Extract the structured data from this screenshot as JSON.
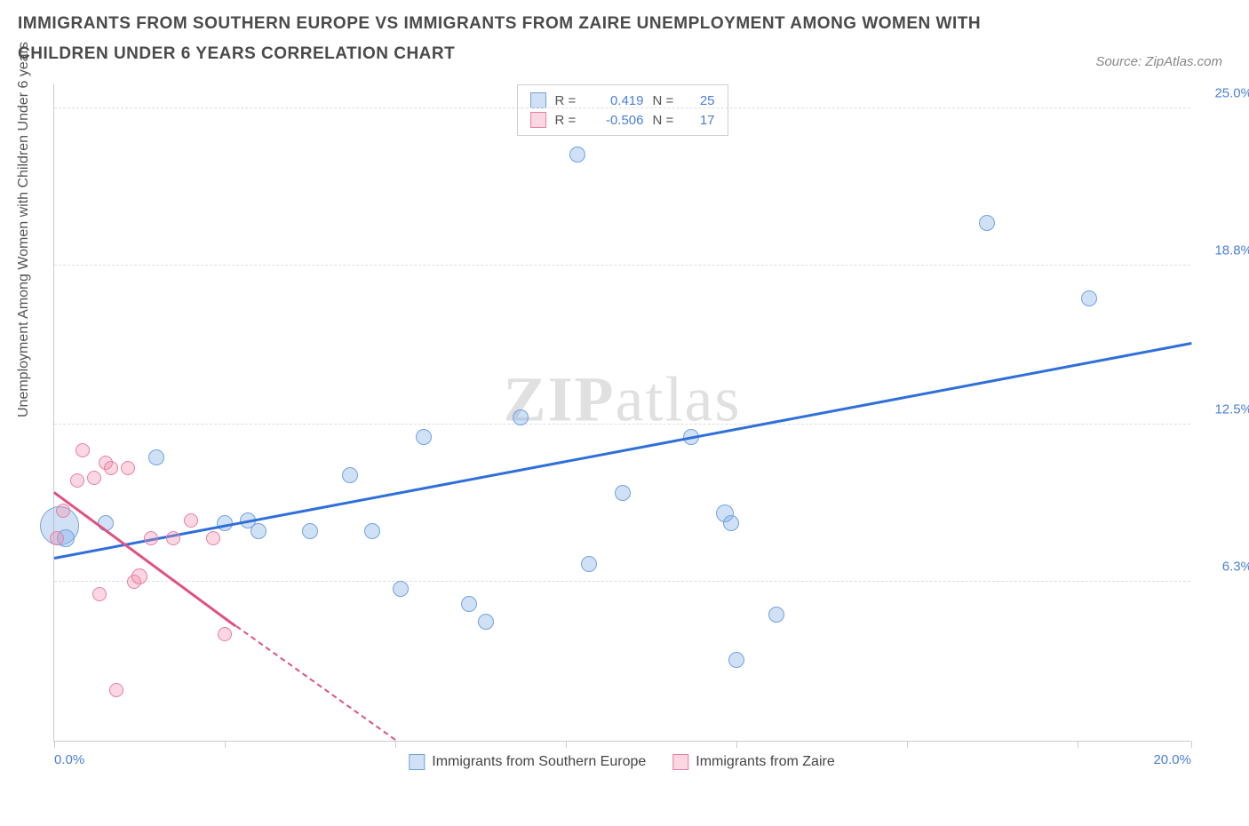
{
  "title": "IMMIGRANTS FROM SOUTHERN EUROPE VS IMMIGRANTS FROM ZAIRE UNEMPLOYMENT AMONG WOMEN WITH CHILDREN UNDER 6 YEARS CORRELATION CHART",
  "source": "Source: ZipAtlas.com",
  "y_axis_label": "Unemployment Among Women with Children Under 6 years",
  "watermark_bold": "ZIP",
  "watermark_light": "atlas",
  "chart": {
    "type": "scatter",
    "xlim": [
      0,
      20
    ],
    "ylim": [
      0,
      26
    ],
    "x_ticks": [
      0,
      3,
      6,
      9,
      12,
      15,
      18,
      20
    ],
    "x_tick_labels": {
      "0": "0.0%",
      "20": "20.0%"
    },
    "y_ticks": [
      6.3,
      12.5,
      18.8,
      25.0
    ],
    "y_tick_labels": [
      "6.3%",
      "12.5%",
      "18.8%",
      "25.0%"
    ],
    "grid_color": "#dddddd",
    "background_color": "#ffffff",
    "axis_color": "#cccccc",
    "series": [
      {
        "name": "Immigrants from Southern Europe",
        "color_fill": "rgba(120,170,230,0.35)",
        "color_stroke": "#6fa3e0",
        "trend_color": "#2e6fd9",
        "R": "0.419",
        "N": "25",
        "trend": {
          "x1": 0,
          "y1": 7.2,
          "x2": 20,
          "y2": 15.7
        },
        "points": [
          {
            "x": 0.1,
            "y": 8.5,
            "r": 22
          },
          {
            "x": 0.2,
            "y": 8.0,
            "r": 10
          },
          {
            "x": 0.9,
            "y": 8.6,
            "r": 9
          },
          {
            "x": 1.8,
            "y": 11.2,
            "r": 9
          },
          {
            "x": 3.0,
            "y": 8.6,
            "r": 9
          },
          {
            "x": 3.4,
            "y": 8.7,
            "r": 9
          },
          {
            "x": 3.6,
            "y": 8.3,
            "r": 9
          },
          {
            "x": 4.5,
            "y": 8.3,
            "r": 9
          },
          {
            "x": 5.2,
            "y": 10.5,
            "r": 9
          },
          {
            "x": 5.6,
            "y": 8.3,
            "r": 9
          },
          {
            "x": 6.1,
            "y": 6.0,
            "r": 9
          },
          {
            "x": 6.5,
            "y": 12.0,
            "r": 9
          },
          {
            "x": 7.3,
            "y": 5.4,
            "r": 9
          },
          {
            "x": 7.6,
            "y": 4.7,
            "r": 9
          },
          {
            "x": 8.2,
            "y": 12.8,
            "r": 9
          },
          {
            "x": 9.2,
            "y": 23.2,
            "r": 9
          },
          {
            "x": 9.4,
            "y": 7.0,
            "r": 9
          },
          {
            "x": 10.0,
            "y": 9.8,
            "r": 9
          },
          {
            "x": 11.2,
            "y": 12.0,
            "r": 9
          },
          {
            "x": 11.8,
            "y": 9.0,
            "r": 10
          },
          {
            "x": 11.9,
            "y": 8.6,
            "r": 9
          },
          {
            "x": 12.0,
            "y": 3.2,
            "r": 9
          },
          {
            "x": 12.7,
            "y": 5.0,
            "r": 9
          },
          {
            "x": 16.4,
            "y": 20.5,
            "r": 9
          },
          {
            "x": 18.2,
            "y": 17.5,
            "r": 9
          }
        ]
      },
      {
        "name": "Immigrants from Zaire",
        "color_fill": "rgba(240,140,170,0.35)",
        "color_stroke": "#e77fa5",
        "trend_color": "#e0517f",
        "R": "-0.506",
        "N": "17",
        "trend": {
          "x1": 0,
          "y1": 9.8,
          "x2": 3.2,
          "y2": 4.5
        },
        "trend_dash": {
          "x1": 3.2,
          "y1": 4.5,
          "x2": 6.0,
          "y2": 0
        },
        "points": [
          {
            "x": 0.05,
            "y": 8.0,
            "r": 8
          },
          {
            "x": 0.15,
            "y": 9.1,
            "r": 8
          },
          {
            "x": 0.4,
            "y": 10.3,
            "r": 8
          },
          {
            "x": 0.5,
            "y": 11.5,
            "r": 8
          },
          {
            "x": 0.7,
            "y": 10.4,
            "r": 8
          },
          {
            "x": 0.8,
            "y": 5.8,
            "r": 8
          },
          {
            "x": 0.9,
            "y": 11.0,
            "r": 8
          },
          {
            "x": 1.0,
            "y": 10.8,
            "r": 8
          },
          {
            "x": 1.1,
            "y": 2.0,
            "r": 8
          },
          {
            "x": 1.3,
            "y": 10.8,
            "r": 8
          },
          {
            "x": 1.4,
            "y": 6.3,
            "r": 8
          },
          {
            "x": 1.5,
            "y": 6.5,
            "r": 9
          },
          {
            "x": 1.7,
            "y": 8.0,
            "r": 8
          },
          {
            "x": 2.1,
            "y": 8.0,
            "r": 8
          },
          {
            "x": 2.4,
            "y": 8.7,
            "r": 8
          },
          {
            "x": 2.8,
            "y": 8.0,
            "r": 8
          },
          {
            "x": 3.0,
            "y": 4.2,
            "r": 8
          }
        ]
      }
    ]
  },
  "legend_top_labels": {
    "R": "R =",
    "N": "N ="
  }
}
